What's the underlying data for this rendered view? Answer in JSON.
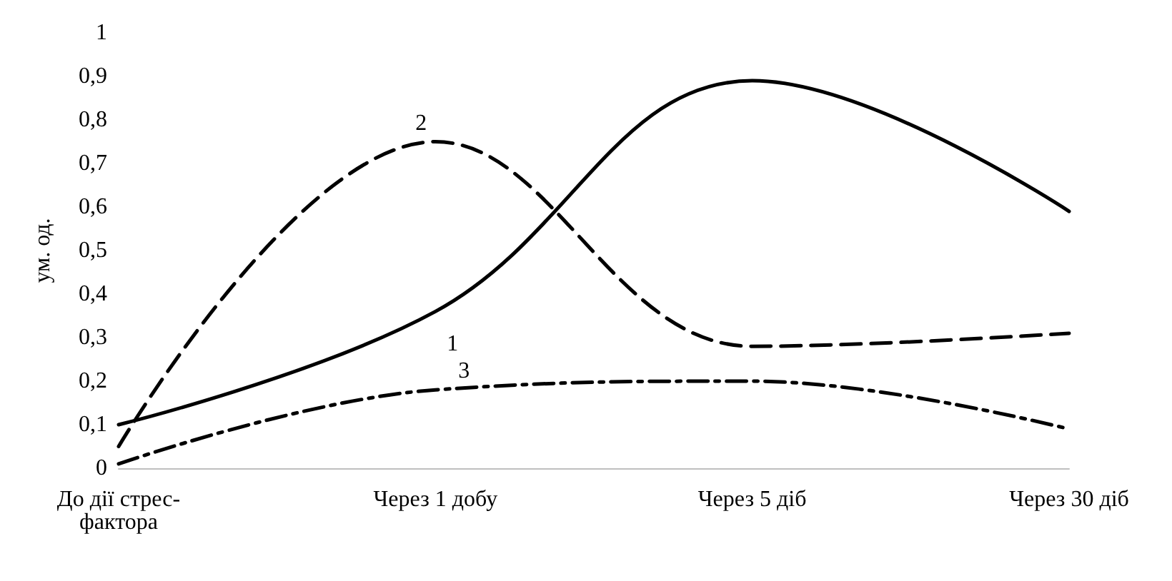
{
  "chart_data": {
    "type": "line",
    "ylabel": "ум. од.",
    "categories": [
      "До дії стрес-\nфактора",
      "Через 1 добу",
      "Через 5 діб",
      "Через 30 діб"
    ],
    "series": [
      {
        "name": "1",
        "color": "#000000",
        "line_style": "solid",
        "values": [
          0.1,
          0.36,
          0.89,
          0.59
        ]
      },
      {
        "name": "2",
        "color": "#000000",
        "line_style": "dashed",
        "values": [
          0.05,
          0.75,
          0.28,
          0.31
        ]
      },
      {
        "name": "3",
        "color": "#000000",
        "line_style": "dotted",
        "values": [
          0.01,
          0.18,
          0.2,
          0.09
        ]
      }
    ],
    "ylim": [
      0,
      1
    ],
    "yticks": [
      0,
      {
        "value": 0.1,
        "label": "0,1"
      },
      {
        "value": 0.2,
        "label": "0,2"
      },
      {
        "value": 0.3,
        "label": "0,3"
      },
      {
        "value": 0.4,
        "label": "0,4"
      },
      {
        "value": 0.5,
        "label": "0,5"
      },
      {
        "value": 0.6,
        "label": "0,6"
      },
      {
        "value": 0.7,
        "label": "0,7"
      },
      {
        "value": 0.8,
        "label": "0,8"
      },
      {
        "value": 0.9,
        "label": "0,9"
      },
      1
    ],
    "grid": false,
    "legend": false,
    "marker": "none"
  }
}
